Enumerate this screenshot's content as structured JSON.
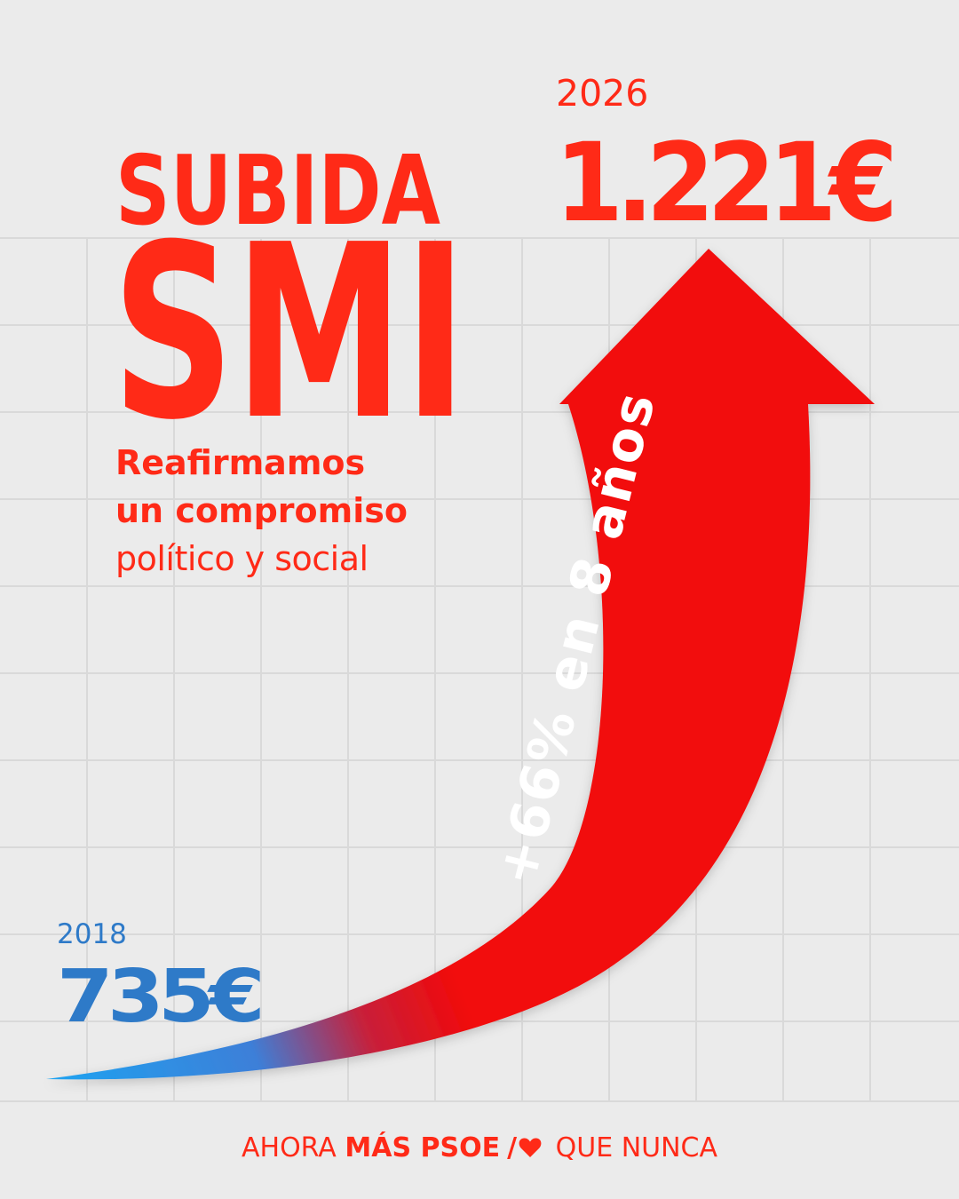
{
  "headline": {
    "line1": "SUBIDA",
    "line2": "SMI"
  },
  "tagline": {
    "line1": "Reafirmamos",
    "line2": "un compromiso",
    "line3": "político y social"
  },
  "start": {
    "year": "2018",
    "amount": "735€"
  },
  "end": {
    "year": "2026",
    "amount": "1.221€"
  },
  "growth_label": "+66% en 8 años",
  "footer": {
    "part1": "AHORA",
    "part2": "MÁS PSOE",
    "slash": "/",
    "part3": "QUE NUNCA"
  },
  "icons": {
    "heart": "heart-icon",
    "arrow": "arrow-up-icon"
  },
  "colors": {
    "background": "#ebebeb",
    "grid": "#d7d7d7",
    "red": "#ff2a17",
    "arrow_red": "#f20a0a",
    "blue": "#2e7ac8",
    "arrow_blue": "#1fa2f0"
  }
}
